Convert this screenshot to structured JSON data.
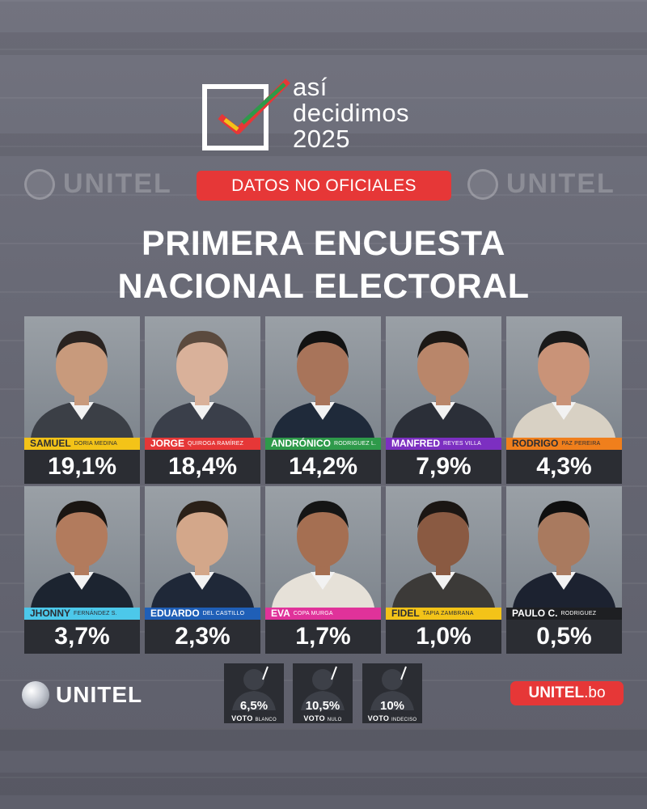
{
  "header": {
    "logo_line1": "así",
    "logo_line2": "decidimos",
    "logo_line3": "2025",
    "badge": "DATOS NO OFICIALES",
    "watermark_left": "UNITEL",
    "watermark_right": "UNITEL",
    "headline_line1": "PRIMERA ENCUESTA",
    "headline_line2": "NACIONAL ELECTORAL"
  },
  "candidates": [
    {
      "first": "SAMUEL",
      "last": "DORIA MEDINA",
      "pct": "19,1%",
      "color": "#f3c318",
      "text_color": "#2b2d33"
    },
    {
      "first": "JORGE",
      "last": "QUIROGA RAMÍREZ",
      "pct": "18,4%",
      "color": "#e63737",
      "text_color": "#ffffff"
    },
    {
      "first": "ANDRÓNICO",
      "last": "RODRIGUEZ L.",
      "pct": "14,2%",
      "color": "#2e9a4a",
      "text_color": "#ffffff"
    },
    {
      "first": "MANFRED",
      "last": "REYES VILLA",
      "pct": "7,9%",
      "color": "#7c2fc1",
      "text_color": "#ffffff"
    },
    {
      "first": "RODRIGO",
      "last": "PAZ PEREIRA",
      "pct": "4,3%",
      "color": "#f07f1c",
      "text_color": "#2b2d33"
    },
    {
      "first": "JHONNY",
      "last": "FERNÁNDEZ S.",
      "pct": "3,7%",
      "color": "#4cc8ea",
      "text_color": "#2b2d33"
    },
    {
      "first": "EDUARDO",
      "last": "DEL CASTILLO",
      "pct": "2,3%",
      "color": "#1f5fb7",
      "text_color": "#ffffff"
    },
    {
      "first": "EVA",
      "last": "COPA MURGA",
      "pct": "1,7%",
      "color": "#e0329a",
      "text_color": "#ffffff"
    },
    {
      "first": "FIDEL",
      "last": "TAPIA ZAMBRANA",
      "pct": "1,0%",
      "color": "#f3c318",
      "text_color": "#2b2d33"
    },
    {
      "first": "PAULO C.",
      "last": "RODRIGUEZ",
      "pct": "0,5%",
      "color": "#1e1f22",
      "text_color": "#ffffff"
    }
  ],
  "votes": [
    {
      "pct": "6,5%",
      "label": "VOTO",
      "sub": "BLANCO"
    },
    {
      "pct": "10,5%",
      "label": "VOTO",
      "sub": "NULO"
    },
    {
      "pct": "10%",
      "label": "VOTO",
      "sub": "INDECISO"
    }
  ],
  "footer": {
    "unitel_logo": "UNITEL",
    "unitel_bo_bold": "UNITEL",
    "unitel_bo_rest": ".bo"
  },
  "colors": {
    "accent_red": "#e63737",
    "panel_dark": "#2b2d33"
  }
}
